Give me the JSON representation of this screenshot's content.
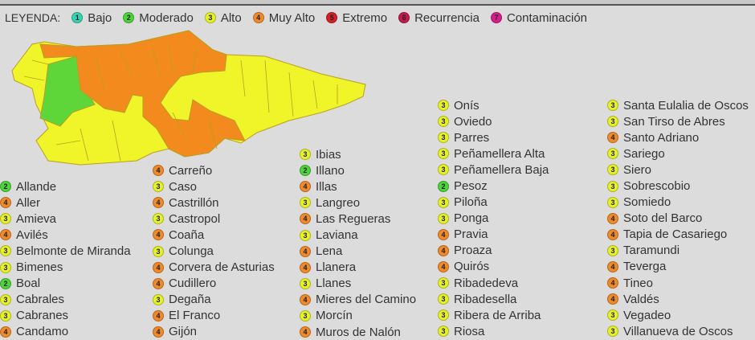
{
  "legend": {
    "title": "LEYENDA:",
    "items": [
      {
        "level": "1",
        "label": "Bajo",
        "color": "#35d3b0"
      },
      {
        "level": "2",
        "label": "Moderado",
        "color": "#4cd43a"
      },
      {
        "level": "3",
        "label": "Alto",
        "color": "#e6f227"
      },
      {
        "level": "4",
        "label": "Muy Alto",
        "color": "#f08a2a"
      },
      {
        "level": "5",
        "label": "Extremo",
        "color": "#d42028"
      },
      {
        "level": "6",
        "label": "Recurrencia",
        "color": "#c21a4a"
      },
      {
        "level": "7",
        "label": "Contaminación",
        "color": "#d61e8c"
      }
    ]
  },
  "map_colors": {
    "alto": "#f0f52a",
    "muy_alto": "#f28a1e",
    "moderado": "#5ed63a",
    "border": "#b8a020"
  },
  "columns": [
    [
      {
        "level": "2",
        "name": "Allande"
      },
      {
        "level": "4",
        "name": "Aller"
      },
      {
        "level": "3",
        "name": "Amieva"
      },
      {
        "level": "4",
        "name": "Avilés"
      },
      {
        "level": "3",
        "name": "Belmonte de Miranda"
      },
      {
        "level": "3",
        "name": "Bimenes"
      },
      {
        "level": "2",
        "name": "Boal"
      },
      {
        "level": "3",
        "name": "Cabrales"
      },
      {
        "level": "3",
        "name": "Cabranes"
      },
      {
        "level": "4",
        "name": "Candamo"
      }
    ],
    [
      {
        "level": "4",
        "name": "Carreño"
      },
      {
        "level": "3",
        "name": "Caso"
      },
      {
        "level": "4",
        "name": "Castrillón"
      },
      {
        "level": "3",
        "name": "Castropol"
      },
      {
        "level": "4",
        "name": "Coaña"
      },
      {
        "level": "3",
        "name": "Colunga"
      },
      {
        "level": "4",
        "name": "Corvera de Asturias"
      },
      {
        "level": "4",
        "name": "Cudillero"
      },
      {
        "level": "3",
        "name": "Degaña"
      },
      {
        "level": "4",
        "name": "El Franco"
      },
      {
        "level": "4",
        "name": "Gijón"
      }
    ],
    [
      {
        "level": "3",
        "name": "Ibias"
      },
      {
        "level": "2",
        "name": "Illano"
      },
      {
        "level": "4",
        "name": "Illas"
      },
      {
        "level": "3",
        "name": "Langreo"
      },
      {
        "level": "4",
        "name": "Las Regueras"
      },
      {
        "level": "3",
        "name": "Laviana"
      },
      {
        "level": "4",
        "name": "Lena"
      },
      {
        "level": "4",
        "name": "Llanera"
      },
      {
        "level": "3",
        "name": "Llanes"
      },
      {
        "level": "4",
        "name": "Mieres del Camino"
      },
      {
        "level": "3",
        "name": "Morcín"
      },
      {
        "level": "4",
        "name": "Muros de Nalón"
      }
    ],
    [
      {
        "level": "3",
        "name": "Onís"
      },
      {
        "level": "3",
        "name": "Oviedo"
      },
      {
        "level": "3",
        "name": "Parres"
      },
      {
        "level": "3",
        "name": "Peñamellera Alta"
      },
      {
        "level": "3",
        "name": "Peñamellera Baja"
      },
      {
        "level": "2",
        "name": "Pesoz"
      },
      {
        "level": "3",
        "name": "Piloña"
      },
      {
        "level": "3",
        "name": "Ponga"
      },
      {
        "level": "4",
        "name": "Pravia"
      },
      {
        "level": "4",
        "name": "Proaza"
      },
      {
        "level": "4",
        "name": "Quirós"
      },
      {
        "level": "3",
        "name": "Ribadedeva"
      },
      {
        "level": "3",
        "name": "Ribadesella"
      },
      {
        "level": "3",
        "name": "Ribera de Arriba"
      },
      {
        "level": "3",
        "name": "Riosa"
      }
    ],
    [
      {
        "level": "3",
        "name": "Santa Eulalia de Oscos"
      },
      {
        "level": "3",
        "name": "San Tirso de Abres"
      },
      {
        "level": "4",
        "name": "Santo Adriano"
      },
      {
        "level": "3",
        "name": "Sariego"
      },
      {
        "level": "3",
        "name": "Siero"
      },
      {
        "level": "3",
        "name": "Sobrescobio"
      },
      {
        "level": "3",
        "name": "Somiedo"
      },
      {
        "level": "4",
        "name": "Soto del Barco"
      },
      {
        "level": "4",
        "name": "Tapia de Casariego"
      },
      {
        "level": "3",
        "name": "Taramundi"
      },
      {
        "level": "4",
        "name": "Teverga"
      },
      {
        "level": "4",
        "name": "Tineo"
      },
      {
        "level": "4",
        "name": "Valdés"
      },
      {
        "level": "3",
        "name": "Vegadeo"
      },
      {
        "level": "3",
        "name": "Villanueva de Oscos"
      }
    ]
  ]
}
